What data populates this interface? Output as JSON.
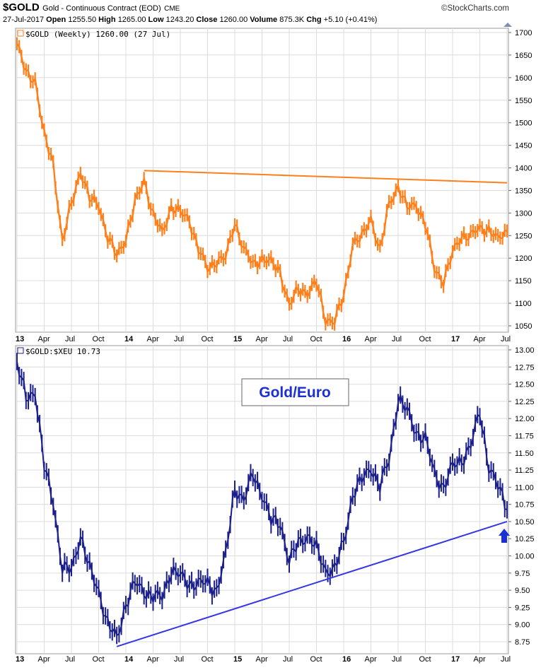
{
  "header": {
    "symbol": "$GOLD",
    "name": "Gold - Continuous Contract (EOD)",
    "exchange": "CME",
    "source": "©StockCharts.com",
    "date": "27-Jul-2017",
    "open_label": "Open",
    "open": "1255.50",
    "high_label": "High",
    "high": "1265.00",
    "low_label": "Low",
    "low": "1243.20",
    "close_label": "Close",
    "close": "1260.00",
    "volume_label": "Volume",
    "volume": "875.3K",
    "chg_label": "Chg",
    "chg": "+5.10 (+0.41%)"
  },
  "colors": {
    "gold": "#ff7f1a",
    "ratio": "#1b1f8c",
    "trend": "#3535e6",
    "grid": "#dcdcdc",
    "box": "#1b2fd6"
  },
  "chart_data": [
    {
      "type": "line",
      "legend": "$GOLD (Weekly) 1260.00 (27 Jul)",
      "x_ticks": [
        "13",
        "Apr",
        "Jul",
        "Oct",
        "14",
        "Apr",
        "Jul",
        "Oct",
        "15",
        "Apr",
        "Jul",
        "Oct",
        "16",
        "Apr",
        "Jul",
        "Oct",
        "17",
        "Apr",
        "Jul"
      ],
      "y_ticks": [
        "1700",
        "1650",
        "1600",
        "1550",
        "1500",
        "1450",
        "1400",
        "1350",
        "1300",
        "1250",
        "1200",
        "1150",
        "1100",
        "1050"
      ],
      "ylim": [
        1030,
        1712
      ],
      "x": [
        "2013-01",
        "2013-02",
        "2013-03",
        "2013-04",
        "2013-05",
        "2013-06",
        "2013-07",
        "2013-08",
        "2013-09",
        "2013-10",
        "2013-11",
        "2013-12",
        "2014-01",
        "2014-02",
        "2014-03",
        "2014-04",
        "2014-05",
        "2014-06",
        "2014-07",
        "2014-08",
        "2014-09",
        "2014-10",
        "2014-11",
        "2014-12",
        "2015-01",
        "2015-02",
        "2015-03",
        "2015-04",
        "2015-05",
        "2015-06",
        "2015-07",
        "2015-08",
        "2015-09",
        "2015-10",
        "2015-11",
        "2015-12",
        "2016-01",
        "2016-02",
        "2016-03",
        "2016-04",
        "2016-05",
        "2016-06",
        "2016-07",
        "2016-08",
        "2016-09",
        "2016-10",
        "2016-11",
        "2016-12",
        "2017-01",
        "2017-02",
        "2017-03",
        "2017-04",
        "2017-05",
        "2017-06",
        "2017-07"
      ],
      "values": [
        1675,
        1610,
        1595,
        1470,
        1410,
        1235,
        1320,
        1395,
        1330,
        1320,
        1245,
        1205,
        1245,
        1320,
        1375,
        1295,
        1255,
        1315,
        1300,
        1285,
        1220,
        1175,
        1195,
        1200,
        1280,
        1220,
        1185,
        1200,
        1190,
        1170,
        1095,
        1130,
        1125,
        1145,
        1065,
        1060,
        1115,
        1235,
        1245,
        1290,
        1215,
        1320,
        1360,
        1310,
        1320,
        1275,
        1175,
        1150,
        1210,
        1250,
        1250,
        1265,
        1265,
        1240,
        1260
      ],
      "trendline": {
        "start": {
          "x": "2014-03",
          "y": 1394
        },
        "end": {
          "x": "2017-07",
          "y": 1367
        }
      }
    },
    {
      "type": "line",
      "legend": "$GOLD:$XEU 10.73",
      "annotation": "Gold/Euro",
      "x_ticks": [
        "13",
        "Apr",
        "Jul",
        "Oct",
        "14",
        "Apr",
        "Jul",
        "Oct",
        "15",
        "Apr",
        "Jul",
        "Oct",
        "16",
        "Apr",
        "Jul",
        "Oct",
        "17",
        "Apr",
        "Jul"
      ],
      "y_ticks": [
        "13.00",
        "12.75",
        "12.50",
        "12.25",
        "12.00",
        "11.75",
        "11.50",
        "11.25",
        "11.00",
        "10.75",
        "10.50",
        "10.25",
        "10.00",
        "9.75",
        "9.50",
        "9.25",
        "9.00",
        "8.75"
      ],
      "ylim": [
        8.6,
        13.02
      ],
      "x": [
        "2013-01",
        "2013-02",
        "2013-03",
        "2013-04",
        "2013-05",
        "2013-06",
        "2013-07",
        "2013-08",
        "2013-09",
        "2013-10",
        "2013-11",
        "2013-12",
        "2014-01",
        "2014-02",
        "2014-03",
        "2014-04",
        "2014-05",
        "2014-06",
        "2014-07",
        "2014-08",
        "2014-09",
        "2014-10",
        "2014-11",
        "2014-12",
        "2015-01",
        "2015-02",
        "2015-03",
        "2015-04",
        "2015-05",
        "2015-06",
        "2015-07",
        "2015-08",
        "2015-09",
        "2015-10",
        "2015-11",
        "2015-12",
        "2016-01",
        "2016-02",
        "2016-03",
        "2016-04",
        "2016-05",
        "2016-06",
        "2016-07",
        "2016-08",
        "2016-09",
        "2016-10",
        "2016-11",
        "2016-12",
        "2017-01",
        "2017-02",
        "2017-03",
        "2017-04",
        "2017-05",
        "2017-06",
        "2017-07"
      ],
      "values": [
        12.8,
        12.3,
        12.4,
        11.3,
        10.8,
        9.8,
        9.8,
        10.3,
        9.8,
        9.5,
        9.0,
        8.8,
        9.3,
        9.6,
        9.5,
        9.4,
        9.4,
        9.8,
        9.7,
        9.6,
        9.6,
        9.6,
        9.5,
        10.0,
        11.0,
        10.8,
        11.2,
        10.9,
        10.5,
        10.5,
        9.9,
        10.2,
        10.3,
        10.1,
        9.8,
        9.8,
        10.2,
        10.9,
        11.1,
        11.3,
        11.0,
        11.4,
        12.3,
        12.1,
        11.8,
        11.7,
        11.2,
        11.0,
        11.3,
        11.4,
        11.6,
        12.1,
        11.3,
        11.0,
        10.73
      ],
      "trendline": {
        "start": {
          "x": "2013-12",
          "y": 8.68
        },
        "end": {
          "x": "2017-07",
          "y": 10.5
        }
      }
    }
  ]
}
